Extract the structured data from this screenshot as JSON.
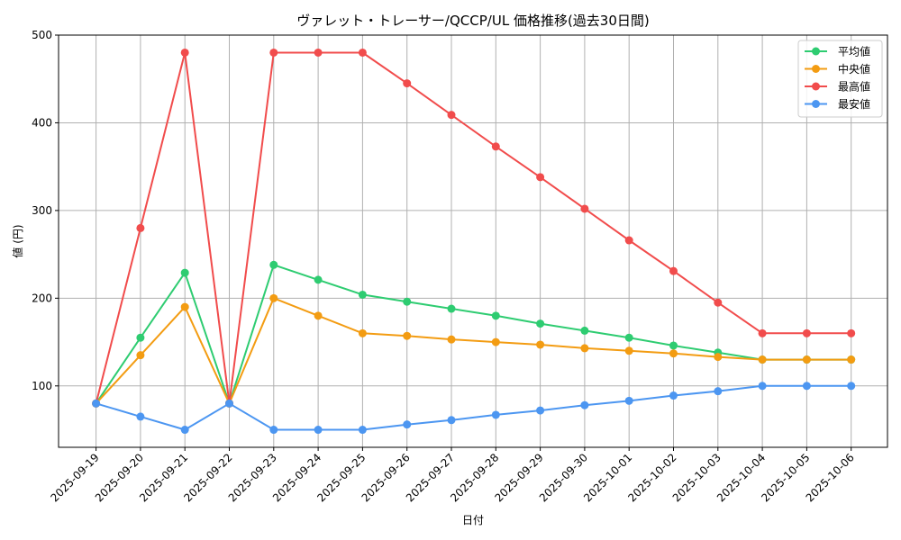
{
  "chart_data": {
    "type": "line",
    "title": "ヴァレット・トレーサー/QCCP/UL 価格推移(過去30日間)",
    "xlabel": "日付",
    "ylabel": "値 (円)",
    "categories": [
      "2025-09-19",
      "2025-09-20",
      "2025-09-21",
      "2025-09-22",
      "2025-09-23",
      "2025-09-24",
      "2025-09-25",
      "2025-09-26",
      "2025-09-27",
      "2025-09-28",
      "2025-09-29",
      "2025-09-30",
      "2025-10-01",
      "2025-10-02",
      "2025-10-03",
      "2025-10-04",
      "2025-10-05",
      "2025-10-06"
    ],
    "ylim": [
      30,
      500
    ],
    "yticks": [
      100,
      200,
      300,
      400,
      500
    ],
    "grid": true,
    "legend_position": "top-right",
    "series": [
      {
        "name": "平均値",
        "color": "#2ecc71",
        "values": [
          80,
          155,
          229,
          80,
          238,
          221,
          204,
          196,
          188,
          180,
          171,
          163,
          155,
          146,
          138,
          130,
          130,
          130
        ]
      },
      {
        "name": "中央値",
        "color": "#f39c12",
        "values": [
          80,
          135,
          190,
          80,
          200,
          180,
          160,
          157,
          153,
          150,
          147,
          143,
          140,
          137,
          133,
          130,
          130,
          130
        ]
      },
      {
        "name": "最高値",
        "color": "#f14c4c",
        "values": [
          80,
          280,
          480,
          80,
          480,
          480,
          480,
          445,
          409,
          373,
          338,
          302,
          266,
          231,
          195,
          160,
          160,
          160
        ]
      },
      {
        "name": "最安値",
        "color": "#4c96f1",
        "values": [
          80,
          65,
          50,
          80,
          50,
          50,
          50,
          56,
          61,
          67,
          72,
          78,
          83,
          89,
          94,
          100,
          100,
          100
        ]
      }
    ]
  }
}
